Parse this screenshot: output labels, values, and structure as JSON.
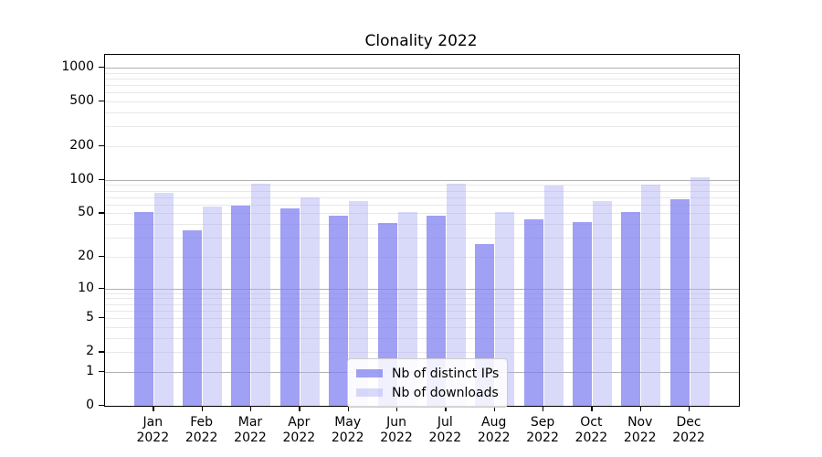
{
  "title": "Clonality 2022",
  "chart_data": {
    "type": "bar",
    "title": "Clonality 2022",
    "categories": [
      "Jan 2022",
      "Feb 2022",
      "Mar 2022",
      "Apr 2022",
      "May 2022",
      "Jun 2022",
      "Jul 2022",
      "Aug 2022",
      "Sep 2022",
      "Oct 2022",
      "Nov 2022",
      "Dec 2022"
    ],
    "series": [
      {
        "name": "Nb of distinct IPs",
        "color": "rgba(124,124,240,0.72)",
        "values": [
          51,
          35,
          59,
          55,
          48,
          41,
          48,
          26,
          44,
          42,
          51,
          67
        ]
      },
      {
        "name": "Nb of downloads",
        "color": "rgba(170,170,245,0.45)",
        "values": [
          77,
          58,
          92,
          70,
          65,
          51,
          92,
          51,
          89,
          64,
          91,
          105
        ]
      }
    ],
    "yscale": "log1p",
    "yticks": [
      0,
      1,
      2,
      5,
      10,
      20,
      50,
      100,
      200,
      500,
      1000
    ],
    "ylim": [
      0,
      1300
    ],
    "grid": true,
    "legend_position": "lower center inside",
    "xlabel": "",
    "ylabel": ""
  },
  "colors": {
    "major_grid": "#b2b2b2",
    "minor_grid": "#e8e8e8",
    "axis": "#000000",
    "legend_border": "#cccccc",
    "bar_dark": "rgba(124,124,240,0.72)",
    "bar_light": "rgba(170,170,245,0.45)"
  }
}
